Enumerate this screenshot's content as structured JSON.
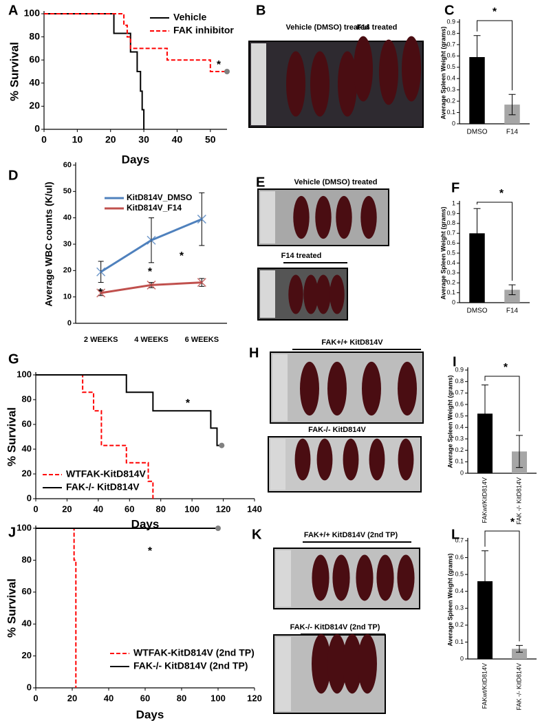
{
  "chart_data": [
    {
      "type": "step",
      "label": "A",
      "xlabel": "Days",
      "ylabel": "% Survival",
      "xlim": [
        0,
        55
      ],
      "xticks": [
        0,
        10,
        20,
        30,
        40,
        50
      ],
      "ylim": [
        0,
        100
      ],
      "yticks": [
        0,
        20,
        40,
        60,
        80,
        100
      ],
      "annotations": [
        "*"
      ],
      "series": [
        {
          "name": "Vehicle",
          "color": "#000000",
          "dash": false,
          "x": [
            0,
            21,
            26,
            28,
            29,
            29.5,
            30
          ],
          "values": [
            100,
            83,
            67,
            50,
            33,
            17,
            0
          ]
        },
        {
          "name": "FAK inhibitor",
          "color": "#ff0000",
          "dash": true,
          "x": [
            0,
            24,
            25,
            26,
            37,
            50,
            55
          ],
          "values": [
            100,
            90,
            80,
            70,
            60,
            50,
            50
          ],
          "end_marker_color": "#808080"
        }
      ]
    },
    {
      "type": "bar",
      "label": "C",
      "ylabel": "Average Spleen Weight (grams)",
      "categories": [
        "DMSO",
        "F14"
      ],
      "values": [
        0.59,
        0.17
      ],
      "errors": [
        0.19,
        0.09
      ],
      "colors": [
        "#000000",
        "#a6a6a6"
      ],
      "ylim": [
        0,
        0.9
      ],
      "yticks": [
        0,
        0.1,
        0.2,
        0.3,
        0.4,
        0.5,
        0.6,
        0.7,
        0.8,
        0.9
      ],
      "annotations": [
        "*"
      ]
    },
    {
      "type": "line",
      "label": "D",
      "ylabel": "Average WBC counts (K/ul)",
      "categories": [
        "2 WEEKS",
        "4 WEEKS",
        "6 WEEKS"
      ],
      "ylim": [
        0,
        60
      ],
      "yticks": [
        0,
        10,
        20,
        30,
        40,
        50,
        60
      ],
      "annotations": [
        "*",
        "*",
        "*"
      ],
      "series": [
        {
          "name": "KitD814V_DMSO",
          "color": "#4f81bd",
          "values": [
            19.5,
            31.5,
            39.5
          ],
          "errors": [
            4,
            8.5,
            10
          ]
        },
        {
          "name": "KitD814V_F14",
          "color": "#c0504d",
          "values": [
            11.5,
            14.5,
            15.5
          ],
          "errors": [
            1,
            1,
            1.5
          ]
        }
      ]
    },
    {
      "type": "bar",
      "label": "F",
      "ylabel": "Average Spleen Weight (grams)",
      "categories": [
        "DMSO",
        "F14"
      ],
      "values": [
        0.7,
        0.13
      ],
      "errors": [
        0.25,
        0.05
      ],
      "colors": [
        "#000000",
        "#a6a6a6"
      ],
      "ylim": [
        0,
        1
      ],
      "yticks": [
        0,
        0.1,
        0.2,
        0.3,
        0.4,
        0.5,
        0.6,
        0.7,
        0.8,
        0.9,
        1
      ],
      "annotations": [
        "*"
      ]
    },
    {
      "type": "step",
      "label": "G",
      "xlabel": "Days",
      "ylabel": "% Survival",
      "xlim": [
        0,
        140
      ],
      "xticks": [
        0,
        20,
        40,
        60,
        80,
        100,
        120,
        140
      ],
      "ylim": [
        0,
        100
      ],
      "yticks": [
        0,
        20,
        40,
        60,
        80,
        100
      ],
      "annotations": [
        "*"
      ],
      "series": [
        {
          "name": "WTFAK-KitD814V",
          "color": "#ff0000",
          "dash": true,
          "x": [
            25,
            30,
            37,
            42,
            58,
            72,
            75
          ],
          "values": [
            100,
            86,
            71,
            43,
            29,
            14,
            0
          ]
        },
        {
          "name": "FAK-/- KitD814V",
          "color": "#000000",
          "dash": false,
          "x": [
            0,
            58,
            75,
            112,
            116,
            119
          ],
          "values": [
            100,
            86,
            71,
            57,
            43,
            43
          ],
          "end_marker_color": "#808080"
        }
      ]
    },
    {
      "type": "bar",
      "label": "I",
      "ylabel": "Average Spleen Weight (grams)",
      "categories": [
        "FAKwt/KitD814V",
        "FAK -/- KitD814V"
      ],
      "values": [
        0.52,
        0.19
      ],
      "errors": [
        0.25,
        0.14
      ],
      "colors": [
        "#000000",
        "#a6a6a6"
      ],
      "ylim": [
        0,
        0.9
      ],
      "yticks": [
        0,
        0.1,
        0.2,
        0.3,
        0.4,
        0.5,
        0.6,
        0.7,
        0.8,
        0.9
      ],
      "annotations": [
        "*"
      ]
    },
    {
      "type": "step",
      "label": "J",
      "xlabel": "Days",
      "ylabel": "% Survival",
      "xlim": [
        0,
        120
      ],
      "xticks": [
        0,
        20,
        40,
        60,
        80,
        100,
        120
      ],
      "ylim": [
        0,
        100
      ],
      "yticks": [
        0,
        20,
        40,
        60,
        80,
        100
      ],
      "annotations": [
        "*"
      ],
      "series": [
        {
          "name": "WTFAK-KitD814V (2nd TP)",
          "color": "#ff0000",
          "dash": true,
          "x": [
            20,
            21,
            22
          ],
          "values": [
            100,
            80,
            0
          ]
        },
        {
          "name": "FAK-/- KitD814V (2nd TP)",
          "color": "#000000",
          "dash": false,
          "x": [
            0,
            100
          ],
          "values": [
            100,
            100
          ],
          "end_marker_color": "#808080"
        }
      ]
    },
    {
      "type": "bar",
      "label": "L",
      "ylabel": "Average Spleen Weight (grams)",
      "categories": [
        "FAKwt/KitD814V",
        "FAK -/- KitD814V"
      ],
      "values": [
        0.46,
        0.06
      ],
      "errors": [
        0.18,
        0.02
      ],
      "colors": [
        "#000000",
        "#a6a6a6"
      ],
      "ylim": [
        0,
        0.7
      ],
      "yticks": [
        0,
        0.1,
        0.2,
        0.3,
        0.4,
        0.5,
        0.6,
        0.7
      ],
      "annotations": [
        "*"
      ]
    }
  ],
  "photos": [
    {
      "label": "B",
      "captions": [
        "Vehicle (DMSO) treated",
        "F14 treated"
      ]
    },
    {
      "label": "E",
      "captions": [
        "Vehicle (DMSO) treated",
        "F14 treated"
      ]
    },
    {
      "label": "H",
      "captions": [
        "FAK+/+ KitD814V",
        "FAK-/- KitD814V"
      ]
    },
    {
      "label": "K",
      "captions": [
        "FAK+/+ KitD814V (2nd TP)",
        "FAK-/- KitD814V (2nd TP)"
      ]
    }
  ]
}
